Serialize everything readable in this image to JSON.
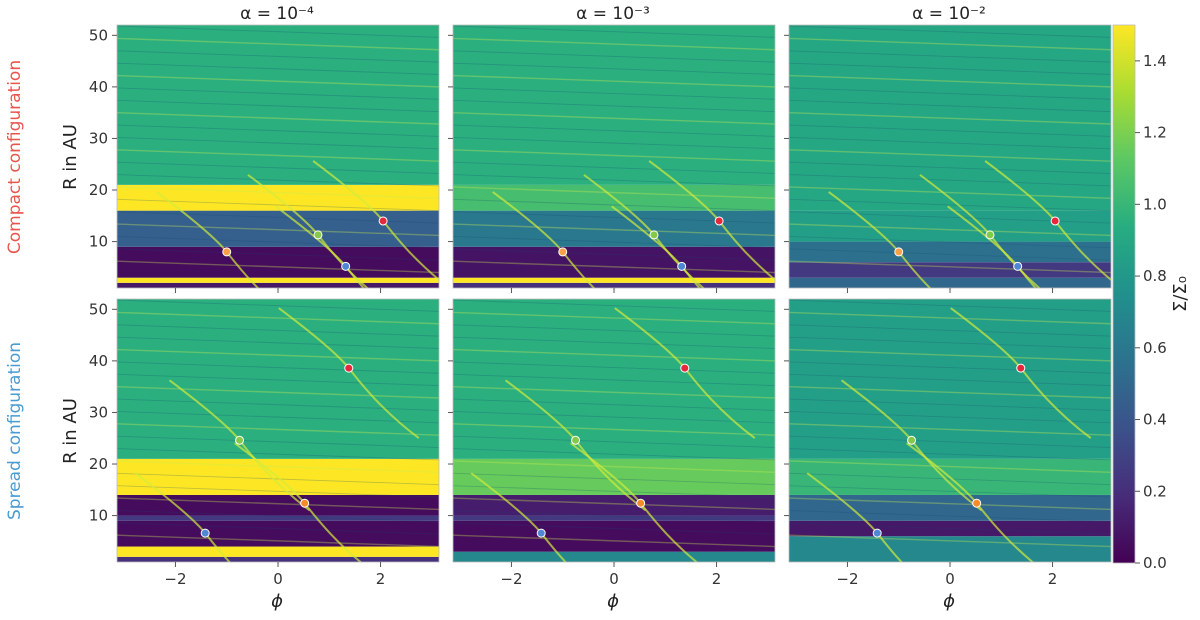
{
  "colors": {
    "compact_label": "#e8554e",
    "spread_label": "#4a9bd1",
    "colormap": [
      "#440154",
      "#472c7a",
      "#3b528b",
      "#2c728e",
      "#21908d",
      "#27ad81",
      "#5cc863",
      "#aadc32",
      "#fde725"
    ]
  },
  "chart_data": {
    "type": "heatmap",
    "colorbar": {
      "label": "Σ/Σ₀",
      "range": [
        0.0,
        1.5
      ],
      "ticks": [
        "0.0",
        "0.2",
        "0.4",
        "0.6",
        "0.8",
        "1.0",
        "1.2",
        "1.4"
      ]
    },
    "columns": [
      {
        "alpha_title": "α = 10⁻⁴"
      },
      {
        "alpha_title": "α = 10⁻³"
      },
      {
        "alpha_title": "α = 10⁻²"
      }
    ],
    "rows": [
      {
        "label": "Compact configuration",
        "ylabel": "R in AU"
      },
      {
        "label": "Spread configuration",
        "ylabel": "R in AU"
      }
    ],
    "xlabel": "ϕ",
    "xlim": [
      -3.14,
      3.14
    ],
    "ylim": [
      1,
      52
    ],
    "xticks": [
      "−2",
      "0",
      "2"
    ],
    "yticks": [
      "10",
      "20",
      "30",
      "40",
      "50"
    ],
    "planets": {
      "compact": [
        {
          "phi": -1.0,
          "r": 8.0,
          "color": "#f7a24a"
        },
        {
          "phi": 0.78,
          "r": 11.3,
          "color": "#86c84a"
        },
        {
          "phi": 2.05,
          "r": 14.0,
          "color": "#e8283a"
        },
        {
          "phi": 1.32,
          "r": 5.2,
          "color": "#4f86d6"
        }
      ],
      "spread": [
        {
          "phi": -1.42,
          "r": 6.6,
          "color": "#4f86d6"
        },
        {
          "phi": 0.52,
          "r": 12.4,
          "color": "#f78a2a"
        },
        {
          "phi": -0.75,
          "r": 24.6,
          "color": "#86c84a"
        },
        {
          "phi": 1.38,
          "r": 38.6,
          "color": "#e8283a"
        }
      ]
    },
    "density_profiles": {
      "compact": [
        {
          "bands": [
            [
              1,
              2,
              0.1
            ],
            [
              2,
              3,
              1.5
            ],
            [
              3,
              9,
              0.05
            ],
            [
              9,
              16,
              0.45
            ],
            [
              16,
              21,
              1.5
            ],
            [
              21,
              52,
              0.95
            ]
          ]
        },
        {
          "bands": [
            [
              1,
              2,
              0.2
            ],
            [
              2,
              3,
              1.5
            ],
            [
              3,
              9,
              0.08
            ],
            [
              9,
              16,
              0.6
            ],
            [
              16,
              21,
              1.05
            ],
            [
              21,
              52,
              0.95
            ]
          ]
        },
        {
          "bands": [
            [
              1,
              3,
              0.5
            ],
            [
              3,
              6,
              0.25
            ],
            [
              6,
              10,
              0.55
            ],
            [
              10,
              16,
              0.85
            ],
            [
              16,
              52,
              0.9
            ]
          ]
        }
      ],
      "spread": [
        {
          "bands": [
            [
              1,
              2,
              0.2
            ],
            [
              2,
              4,
              1.5
            ],
            [
              4,
              9,
              0.05
            ],
            [
              9,
              10,
              0.25
            ],
            [
              10,
              14,
              0.05
            ],
            [
              14,
              21,
              1.5
            ],
            [
              21,
              52,
              0.95
            ]
          ]
        },
        {
          "bands": [
            [
              1,
              3,
              0.7
            ],
            [
              3,
              9,
              0.05
            ],
            [
              9,
              10,
              0.25
            ],
            [
              10,
              14,
              0.12
            ],
            [
              14,
              21,
              1.15
            ],
            [
              21,
              52,
              0.95
            ]
          ]
        },
        {
          "bands": [
            [
              1,
              6,
              0.7
            ],
            [
              6,
              9,
              0.1
            ],
            [
              9,
              14,
              0.5
            ],
            [
              14,
              21,
              1.0
            ],
            [
              21,
              52,
              0.85
            ]
          ]
        }
      ]
    }
  }
}
